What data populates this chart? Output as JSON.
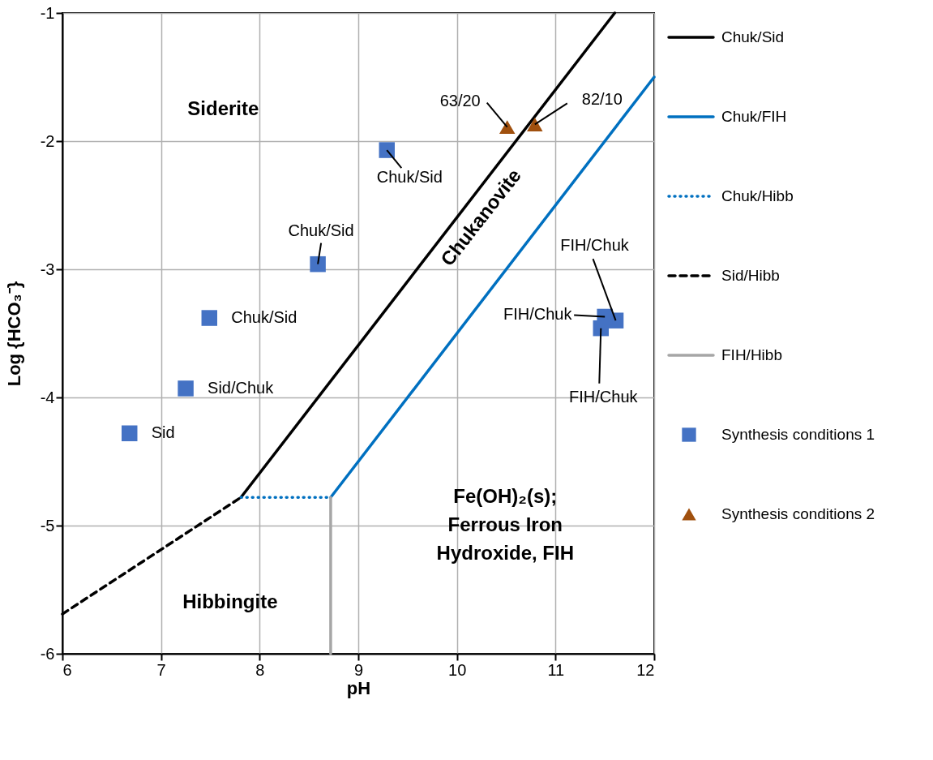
{
  "chart_data": {
    "type": "line",
    "xlabel": "pH",
    "ylabel": "Log {HCO₃⁻}",
    "xlim": [
      6,
      12
    ],
    "ylim": [
      -6,
      -1
    ],
    "xticks": [
      6,
      7,
      8,
      9,
      10,
      11,
      12
    ],
    "yticks": [
      -6,
      -5,
      -4,
      -3,
      -2,
      -1
    ],
    "grid": true,
    "legend": "right",
    "series": [
      {
        "name": "Chuk/Sid",
        "color": "#000000",
        "line_style": "solid",
        "x": [
          7.81,
          11.6
        ],
        "values": [
          -4.78,
          -1.0
        ]
      },
      {
        "name": "Chuk/FIH",
        "color": "#0070c0",
        "line_style": "solid",
        "x": [
          8.72,
          12.0
        ],
        "values": [
          -4.78,
          -1.5
        ]
      },
      {
        "name": "Chuk/Hibb",
        "color": "#0070c0",
        "line_style": "dotted",
        "x": [
          7.81,
          8.72
        ],
        "values": [
          -4.78,
          -4.78
        ]
      },
      {
        "name": "Sid/Hibb",
        "color": "#000000",
        "line_style": "dashed",
        "x": [
          6.0,
          7.81
        ],
        "values": [
          -5.69,
          -4.78
        ]
      },
      {
        "name": "FIH/Hibb",
        "color": "#a6a6a6",
        "line_style": "solid",
        "x": [
          8.72,
          8.72
        ],
        "values": [
          -6.0,
          -4.78
        ]
      },
      {
        "name": "Synthesis conditions 1",
        "type": "scatter",
        "marker": "square",
        "color": "#4472c4",
        "x": [
          6.68,
          7.25,
          7.49,
          8.59,
          9.29,
          11.61,
          11.5,
          11.46
        ],
        "values": [
          -4.28,
          -3.93,
          -3.38,
          -2.96,
          -2.07,
          -3.4,
          -3.37,
          -3.46
        ]
      },
      {
        "name": "Synthesis conditions 2",
        "type": "scatter",
        "marker": "triangle",
        "color": "#a0500e",
        "x": [
          10.51,
          10.79
        ],
        "values": [
          -1.89,
          -1.87
        ]
      }
    ],
    "annotations": [
      "Siderite",
      "Chukanovite",
      "Fe(OH)₂(s);",
      "Ferrous Iron",
      "Hydroxide, FIH",
      "Hibbingite",
      {
        "text": "Sid",
        "x": 6.68,
        "y": -4.28
      },
      {
        "text": "Sid/Chuk",
        "x": 7.25,
        "y": -3.93
      },
      {
        "text": "Chuk/Sid",
        "x": 7.49,
        "y": -3.38
      },
      {
        "text": "Chuk/Sid",
        "x": 8.59,
        "y": -2.96
      },
      {
        "text": "Chuk/Sid",
        "x": 9.29,
        "y": -2.07
      },
      {
        "text": "63/20",
        "x": 10.51,
        "y": -1.89
      },
      {
        "text": "82/10",
        "x": 10.79,
        "y": -1.87
      },
      {
        "text": "FIH/Chuk",
        "x": 11.61,
        "y": -3.4
      },
      {
        "text": "FIH/Chuk",
        "x": 11.5,
        "y": -3.37
      },
      {
        "text": "FIH/Chuk",
        "x": 11.46,
        "y": -3.46
      }
    ]
  }
}
